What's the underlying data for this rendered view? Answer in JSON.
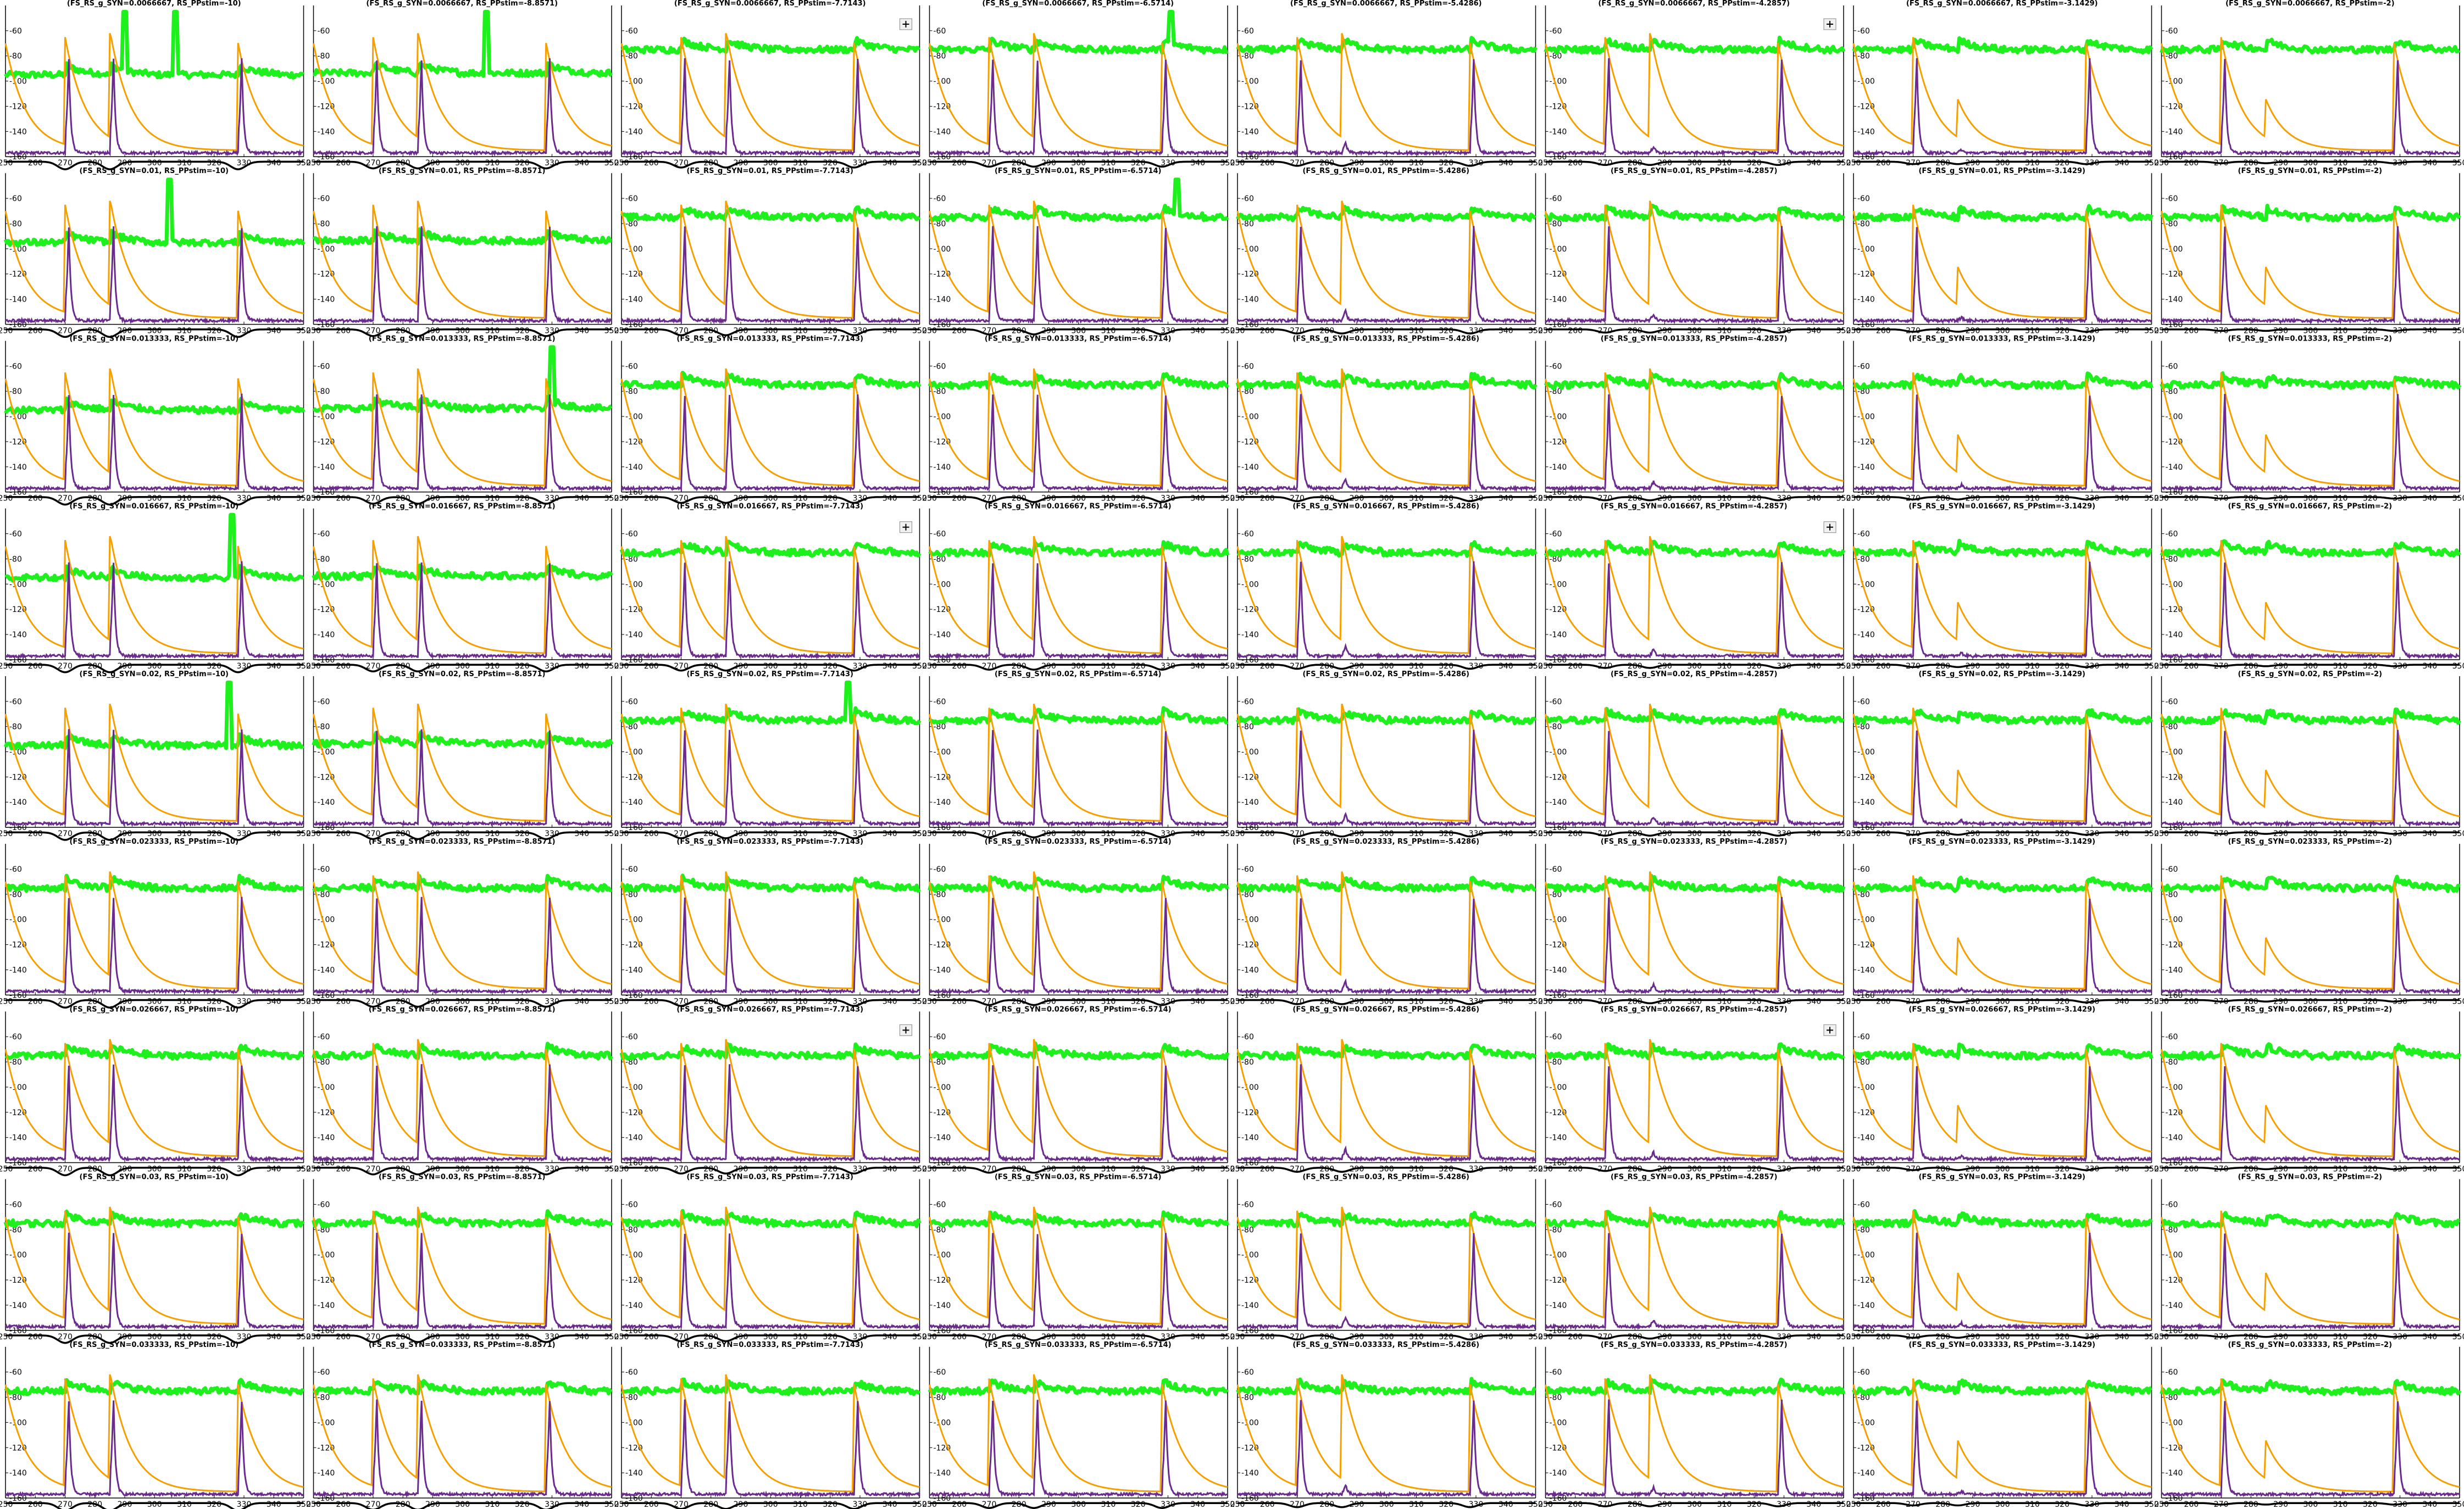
{
  "figure": {
    "rows": 9,
    "cols": 8,
    "colors": {
      "green": "#1ef01e",
      "orange": "#f5a000",
      "purple": "#6a2a8e",
      "black": "#000000",
      "axis": "#000000"
    },
    "legend_button_icon": "plus-box-icon"
  },
  "chart_data": {
    "type": "line",
    "layout": "grid of 9 rows x 8 columns of small line plots",
    "xlim": [
      250,
      350
    ],
    "xticks": [
      250,
      260,
      270,
      280,
      290,
      300,
      310,
      320,
      330,
      340,
      350
    ],
    "ylim": [
      -160,
      -40
    ],
    "yticks": [
      -160,
      -140,
      -120,
      -100,
      -80,
      -60
    ],
    "row_g_syn": [
      "0.0066667",
      "0.01",
      "0.013333",
      "0.016667",
      "0.02",
      "0.023333",
      "0.026667",
      "0.03",
      "0.033333"
    ],
    "col_ppstim": [
      "-10",
      "-8.8571",
      "-7.7143",
      "-6.5714",
      "-5.4286",
      "-4.2857",
      "-3.1429",
      "-2"
    ],
    "title_template": "(FS_RS_g_SYN={g}, RS_PPstim={p})",
    "pulse_times": [
      270,
      285,
      328
    ],
    "series": [
      {
        "name": "",
        "color": "#1ef01e",
        "description": "voltage trace (upper band)"
      },
      {
        "name": "",
        "color": "#f5a000",
        "description": "synaptic conductance trace"
      },
      {
        "name": "",
        "color": "#6a2a8e",
        "description": "spike rate trace"
      },
      {
        "name": "",
        "color": "#000000",
        "description": "stimulus trace"
      }
    ],
    "panel_notes": [
      {
        "row": 0,
        "col": 0,
        "green_spikes": [
          290,
          307
        ]
      },
      {
        "row": 0,
        "col": 1,
        "green_spikes": [
          308
        ]
      },
      {
        "row": 0,
        "col": 3,
        "green_spikes": [
          331
        ]
      },
      {
        "row": 1,
        "col": 0,
        "green_spikes": [
          305
        ]
      },
      {
        "row": 1,
        "col": 3,
        "green_spikes": [
          333
        ]
      },
      {
        "row": 2,
        "col": 1,
        "green_spikes": [
          330
        ]
      },
      {
        "row": 3,
        "col": 0,
        "green_spikes": [
          326
        ]
      },
      {
        "row": 4,
        "col": 0,
        "green_spikes": [
          325
        ]
      },
      {
        "row": 4,
        "col": 2,
        "green_spikes": [
          326
        ]
      }
    ]
  }
}
